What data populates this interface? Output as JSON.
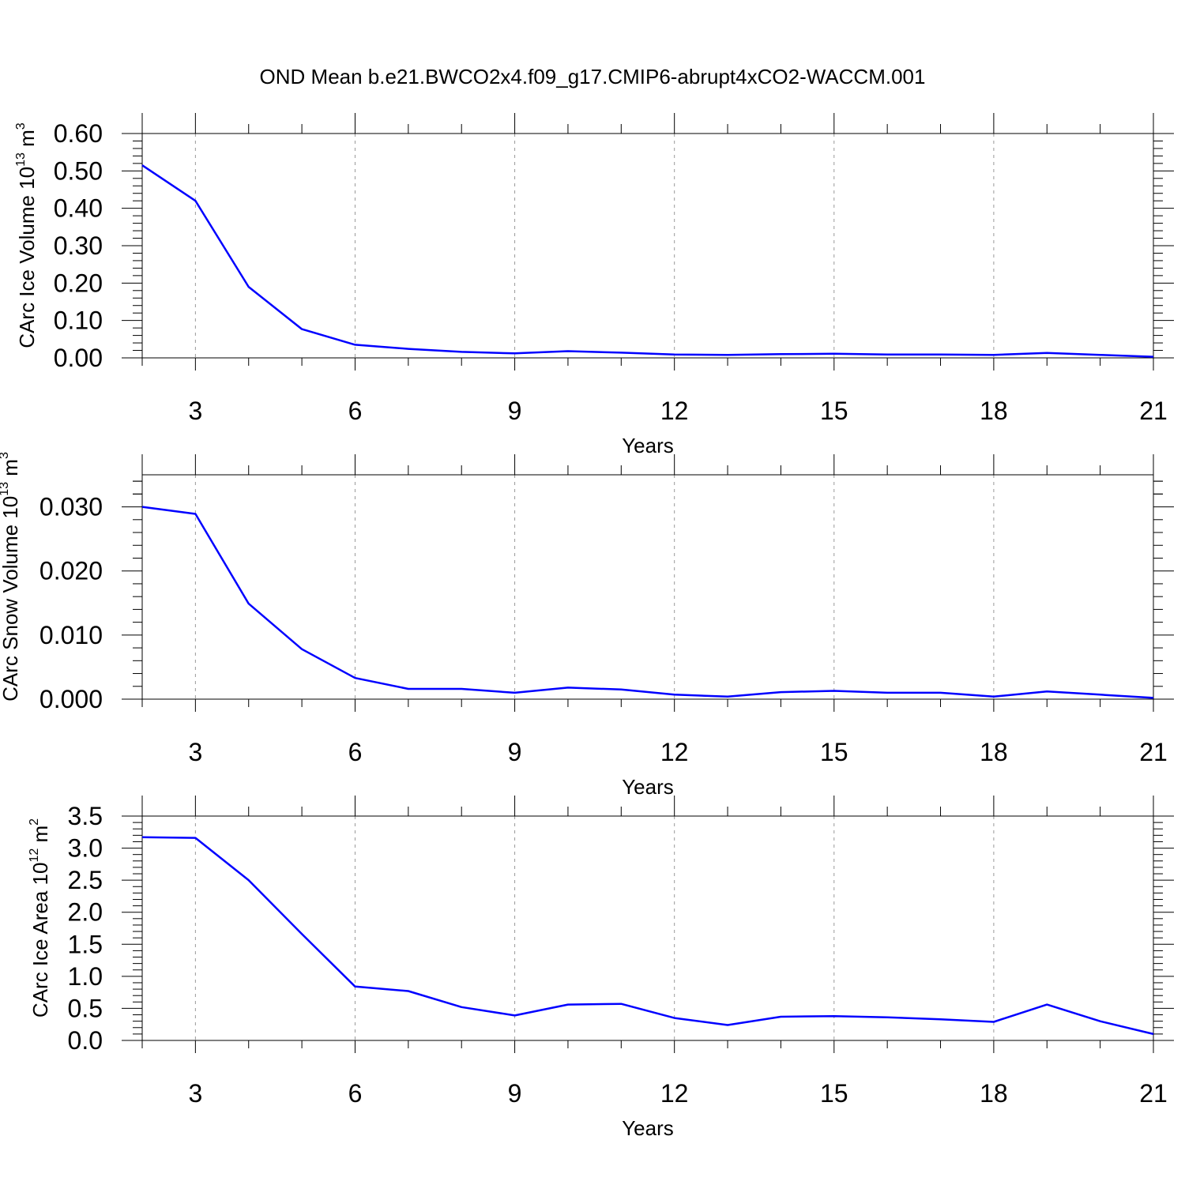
{
  "figure": {
    "title": "OND Mean b.e21.BWCO2x4.f09_g17.CMIP6-abrupt4xCO2-WACCM.001"
  },
  "colors": {
    "series": "#0000ff",
    "grid": "#999999",
    "frame": "#000000"
  },
  "chart_data": [
    {
      "type": "line",
      "name": "ice-volume",
      "ylabel": "CArc Ice Volume 10",
      "ylabel_sup": "13",
      "ylabel_unit": " m",
      "ylabel_unit_sup": "3",
      "xlabel": "Years",
      "xlim": [
        2,
        21
      ],
      "ylim": [
        0,
        0.6
      ],
      "xticks": [
        3,
        6,
        9,
        12,
        15,
        18,
        21
      ],
      "yticks": [
        0,
        0.1,
        0.2,
        0.3,
        0.4,
        0.5,
        0.6
      ],
      "ytick_decimals": 2,
      "grid": "vertical dashed at major x ticks",
      "x": [
        2,
        3,
        4,
        5,
        6,
        7,
        8,
        9,
        10,
        11,
        12,
        13,
        14,
        15,
        16,
        17,
        18,
        19,
        20,
        21
      ],
      "y": [
        0.515,
        0.42,
        0.19,
        0.077,
        0.035,
        0.024,
        0.016,
        0.012,
        0.018,
        0.014,
        0.009,
        0.008,
        0.01,
        0.011,
        0.009,
        0.009,
        0.008,
        0.013,
        0.008,
        0.003
      ]
    },
    {
      "type": "line",
      "name": "snow-volume",
      "ylabel": "CArc Snow Volume 10",
      "ylabel_sup": "13",
      "ylabel_unit": " m",
      "ylabel_unit_sup": "3",
      "xlabel": "Years",
      "xlim": [
        2,
        21
      ],
      "ylim": [
        0,
        0.035
      ],
      "xticks": [
        3,
        6,
        9,
        12,
        15,
        18,
        21
      ],
      "yticks": [
        0,
        0.01,
        0.02,
        0.03
      ],
      "ytick_decimals": 3,
      "grid": "vertical dashed at major x ticks",
      "x": [
        2,
        3,
        4,
        5,
        6,
        7,
        8,
        9,
        10,
        11,
        12,
        13,
        14,
        15,
        16,
        17,
        18,
        19,
        20,
        21
      ],
      "y": [
        0.03,
        0.0289,
        0.0149,
        0.0078,
        0.0033,
        0.0016,
        0.0016,
        0.001,
        0.0018,
        0.0015,
        0.0007,
        0.0004,
        0.0011,
        0.0013,
        0.001,
        0.001,
        0.0004,
        0.0012,
        0.0007,
        0.0002
      ]
    },
    {
      "type": "line",
      "name": "ice-area",
      "ylabel": "CArc Ice Area 10",
      "ylabel_sup": "12",
      "ylabel_unit": " m",
      "ylabel_unit_sup": "2",
      "xlabel": "Years",
      "xlim": [
        2,
        21
      ],
      "ylim": [
        0,
        3.5
      ],
      "xticks": [
        3,
        6,
        9,
        12,
        15,
        18,
        21
      ],
      "yticks": [
        0,
        0.5,
        1,
        1.5,
        2,
        2.5,
        3,
        3.5
      ],
      "ytick_decimals": 1,
      "grid": "vertical dashed at major x ticks",
      "x": [
        2,
        3,
        4,
        5,
        6,
        7,
        8,
        9,
        10,
        11,
        12,
        13,
        14,
        15,
        16,
        17,
        18,
        19,
        20,
        21
      ],
      "y": [
        3.17,
        3.16,
        2.5,
        1.66,
        0.84,
        0.77,
        0.52,
        0.39,
        0.56,
        0.57,
        0.35,
        0.24,
        0.37,
        0.38,
        0.36,
        0.33,
        0.29,
        0.56,
        0.3,
        0.1
      ]
    }
  ]
}
